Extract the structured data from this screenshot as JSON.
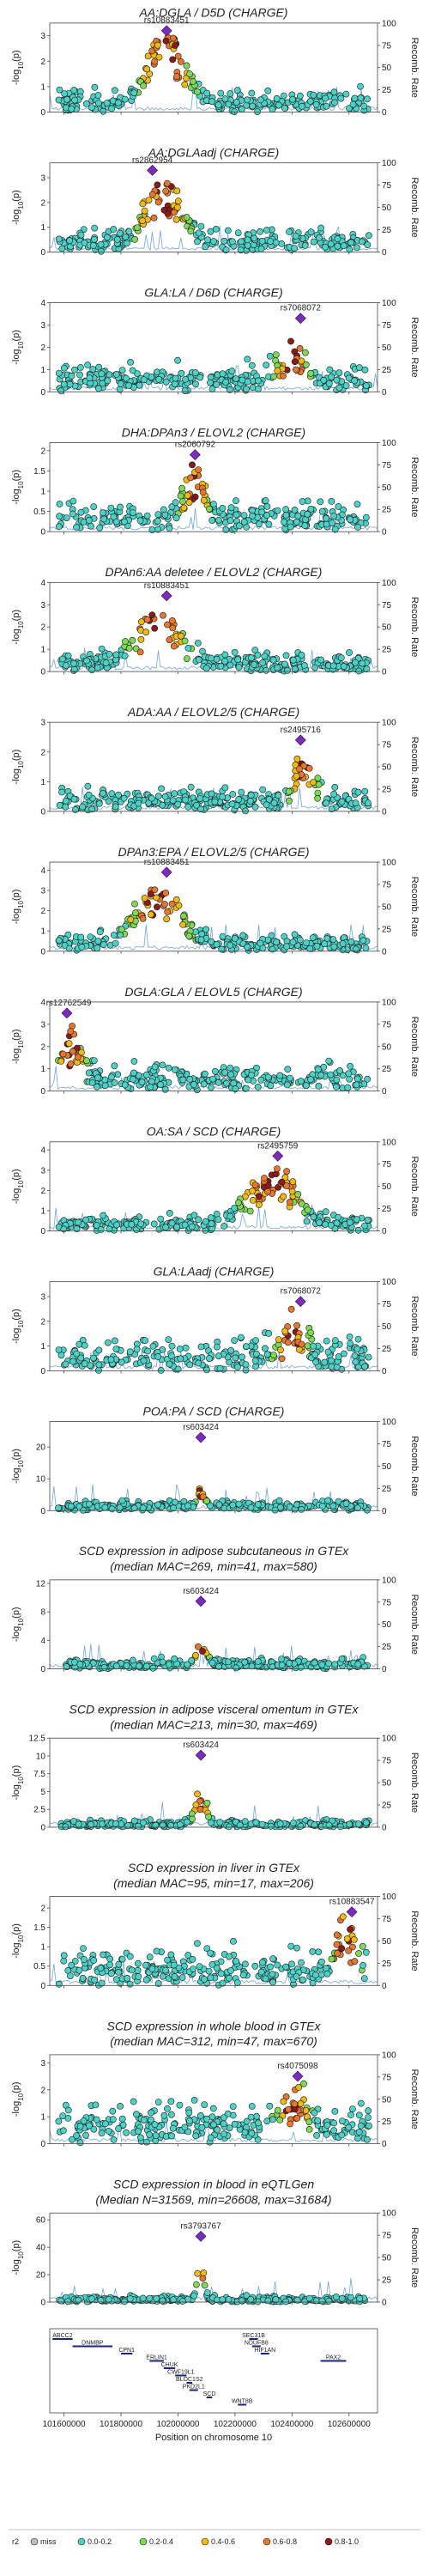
{
  "chart_data": {
    "type": "scatter",
    "chromosome_axis": {
      "xlabel": "Position on chromosome 10",
      "xlim": [
        101550000,
        102700000
      ],
      "x_ticks": [
        101600000,
        101800000,
        102000000,
        102200000,
        102400000,
        102600000
      ]
    },
    "y_axis_label": "-log10(p)",
    "y_axis_label_parts": [
      "-log",
      "10",
      "(p)"
    ],
    "right_axis_label": "Recomb. Rate",
    "right_axis_range": [
      0,
      100
    ],
    "right_axis_ticks": [
      0,
      25,
      50,
      75,
      100
    ],
    "legend": {
      "title": "r2",
      "entries": [
        {
          "label": "miss",
          "color": "#bdbdbd"
        },
        {
          "label": "0.0-0.2",
          "color": "#4dd0c6"
        },
        {
          "label": "0.2-0.4",
          "color": "#7ed957"
        },
        {
          "label": "0.4-0.6",
          "color": "#f2b90f"
        },
        {
          "label": "0.6-0.8",
          "color": "#e8772e"
        },
        {
          "label": "0.8-1.0",
          "color": "#8b1a1a"
        }
      ],
      "lead_color": "#7b2cbf"
    },
    "panels": [
      {
        "title": "AA:DGLA / D5D (CHARGE)",
        "subtitle": "",
        "lead_snp": "rs10883451",
        "lead_pos": 101960000,
        "lead_value": 3.2,
        "ylim": [
          0,
          3.5
        ],
        "y_ticks": [
          0,
          1,
          2,
          3
        ],
        "peak_pos": 101960000,
        "peak_width": 90000,
        "peak_height": 2.9,
        "baseline": 0.45,
        "baseline_spread": 0.65
      },
      {
        "title": "AA:DGLAadj (CHARGE)",
        "subtitle": "",
        "lead_snp": "rs2862954",
        "lead_pos": 101910000,
        "lead_value": 3.3,
        "ylim": [
          0,
          3.6
        ],
        "y_ticks": [
          0,
          1,
          2,
          3
        ],
        "peak_pos": 101950000,
        "peak_width": 90000,
        "peak_height": 2.6,
        "baseline": 0.45,
        "baseline_spread": 0.65
      },
      {
        "title": "GLA:LA / D6D (CHARGE)",
        "subtitle": "",
        "lead_snp": "rs7068072",
        "lead_pos": 102430000,
        "lead_value": 3.3,
        "ylim": [
          0,
          4
        ],
        "y_ticks": [
          0,
          1,
          2,
          3,
          4
        ],
        "peak_pos": 102400000,
        "peak_width": 60000,
        "peak_height": 1.4,
        "baseline": 0.5,
        "baseline_spread": 1.1
      },
      {
        "title": "DHA:DPAn3 / ELOVL2 (CHARGE)",
        "subtitle": "",
        "lead_snp": "rs2060792",
        "lead_pos": 102060000,
        "lead_value": 1.9,
        "ylim": [
          0,
          2.2
        ],
        "y_ticks": [
          0,
          0.5,
          1.0,
          1.5,
          2.0
        ],
        "peak_pos": 102060000,
        "peak_width": 50000,
        "peak_height": 1.2,
        "baseline": 0.35,
        "baseline_spread": 0.6
      },
      {
        "title": "DPAn6:AA deletee / ELOVL2 (CHARGE)",
        "subtitle": "",
        "lead_snp": "rs10883451",
        "lead_pos": 101960000,
        "lead_value": 3.4,
        "ylim": [
          0,
          4
        ],
        "y_ticks": [
          0,
          1,
          2,
          3,
          4
        ],
        "peak_pos": 101930000,
        "peak_width": 100000,
        "peak_height": 2.6,
        "baseline": 0.45,
        "baseline_spread": 0.65
      },
      {
        "title": "ADA:AA / ELOVL2/5 (CHARGE)",
        "subtitle": "",
        "lead_snp": "rs2495716",
        "lead_pos": 102430000,
        "lead_value": 2.4,
        "ylim": [
          0,
          3
        ],
        "y_ticks": [
          0,
          1,
          2,
          3
        ],
        "peak_pos": 102440000,
        "peak_width": 50000,
        "peak_height": 1.4,
        "baseline": 0.35,
        "baseline_spread": 0.7
      },
      {
        "title": "DPAn3:EPA / ELOVL2/5 (CHARGE)",
        "subtitle": "",
        "lead_snp": "rs10883451",
        "lead_pos": 101960000,
        "lead_value": 3.9,
        "ylim": [
          0,
          4.4
        ],
        "y_ticks": [
          0,
          1,
          2,
          3,
          4
        ],
        "peak_pos": 101930000,
        "peak_width": 110000,
        "peak_height": 3.0,
        "baseline": 0.45,
        "baseline_spread": 0.7
      },
      {
        "title": "DGLA:GLA / ELOVL5 (CHARGE)",
        "subtitle": "",
        "lead_snp": "rs12762549",
        "lead_pos": 101610000,
        "lead_value": 3.5,
        "ylim": [
          0,
          4
        ],
        "y_ticks": [
          0,
          1,
          2,
          3,
          4
        ],
        "peak_pos": 101620000,
        "peak_width": 60000,
        "peak_height": 2.0,
        "baseline": 0.55,
        "baseline_spread": 1.0
      },
      {
        "title": "OA:SA / SCD (CHARGE)",
        "subtitle": "",
        "lead_snp": "rs2495759",
        "lead_pos": 102350000,
        "lead_value": 3.7,
        "ylim": [
          0,
          4.4
        ],
        "y_ticks": [
          0,
          1,
          2,
          3,
          4
        ],
        "peak_pos": 102330000,
        "peak_width": 110000,
        "peak_height": 2.8,
        "baseline": 0.35,
        "baseline_spread": 0.6
      },
      {
        "title": "GLA:LAadj (CHARGE)",
        "subtitle": "",
        "lead_snp": "rs7068072",
        "lead_pos": 102430000,
        "lead_value": 2.8,
        "ylim": [
          0,
          3.6
        ],
        "y_ticks": [
          0,
          1,
          2,
          3
        ],
        "peak_pos": 102400000,
        "peak_width": 60000,
        "peak_height": 1.3,
        "baseline": 0.5,
        "baseline_spread": 1.1
      },
      {
        "title": "POA:PA / SCD (CHARGE)",
        "subtitle": "",
        "lead_snp": "rs603424",
        "lead_pos": 102080000,
        "lead_value": 23,
        "ylim": [
          0,
          28
        ],
        "y_ticks": [
          0,
          10,
          20
        ],
        "peak_pos": 102080000,
        "peak_width": 20000,
        "peak_height": 5,
        "baseline": 1.5,
        "baseline_spread": 2.5
      },
      {
        "title": "SCD expression in adipose subcutaneous in GTEx",
        "subtitle": "(median MAC=269, min=41, max=580)",
        "lead_snp": "rs603424",
        "lead_pos": 102080000,
        "lead_value": 9.5,
        "ylim": [
          0,
          12.5
        ],
        "y_ticks": [
          0,
          4,
          8,
          12
        ],
        "peak_pos": 102080000,
        "peak_width": 25000,
        "peak_height": 4,
        "baseline": 0.6,
        "baseline_spread": 1.2
      },
      {
        "title": "SCD expression in adipose visceral omentum in GTEx",
        "subtitle": "(median MAC=213, min=30, max=469)",
        "lead_snp": "rs603424",
        "lead_pos": 102080000,
        "lead_value": 10.1,
        "ylim": [
          0,
          12.5
        ],
        "y_ticks": [
          0,
          2.5,
          5.0,
          7.5,
          10.0,
          12.5
        ],
        "peak_pos": 102080000,
        "peak_width": 30000,
        "peak_height": 4.5,
        "baseline": 0.4,
        "baseline_spread": 0.8
      },
      {
        "title": "SCD expression in liver in GTEx",
        "subtitle": "(median MAC=95, min=17, max=206)",
        "lead_snp": "rs10883547",
        "lead_pos": 102610000,
        "lead_value": 1.9,
        "ylim": [
          0,
          2.3
        ],
        "y_ticks": [
          0,
          0.5,
          1.0,
          1.5,
          2.0
        ],
        "peak_pos": 102590000,
        "peak_width": 50000,
        "peak_height": 1.0,
        "baseline": 0.4,
        "baseline_spread": 0.9
      },
      {
        "title": "SCD expression in whole blood in GTEx",
        "subtitle": "(median MAC=312, min=47, max=670)",
        "lead_snp": "rs4075098",
        "lead_pos": 102420000,
        "lead_value": 2.5,
        "ylim": [
          0,
          3.3
        ],
        "y_ticks": [
          0,
          1,
          2,
          3
        ],
        "peak_pos": 102400000,
        "peak_width": 60000,
        "peak_height": 1.2,
        "baseline": 0.7,
        "baseline_spread": 1.3
      },
      {
        "title": "SCD expression in blood in eQTLGen",
        "subtitle": "(Median N=31569, min=26608, max=31684)",
        "lead_snp": "rs3793767",
        "lead_pos": 102080000,
        "lead_value": 48,
        "ylim": [
          0,
          65
        ],
        "y_ticks": [
          0,
          20,
          40,
          60
        ],
        "peak_pos": 102080000,
        "peak_width": 15000,
        "peak_height": 35,
        "baseline": 1.5,
        "baseline_spread": 4
      }
    ],
    "genes": [
      {
        "name": "ABCC2",
        "start": 101560000,
        "end": 101630000,
        "row": 0
      },
      {
        "name": "DNMBP",
        "start": 101630000,
        "end": 101770000,
        "row": 1
      },
      {
        "name": "CPN1",
        "start": 101800000,
        "end": 101840000,
        "row": 2
      },
      {
        "name": "ERLIN1",
        "start": 101900000,
        "end": 101950000,
        "row": 3
      },
      {
        "name": "CHUK",
        "start": 101950000,
        "end": 101990000,
        "row": 4
      },
      {
        "name": "CWF19L1",
        "start": 101990000,
        "end": 102030000,
        "row": 5
      },
      {
        "name": "BLOC1S2",
        "start": 102030000,
        "end": 102050000,
        "row": 6
      },
      {
        "name": "PKD2L1",
        "start": 102040000,
        "end": 102070000,
        "row": 7
      },
      {
        "name": "SCD",
        "start": 102100000,
        "end": 102120000,
        "row": 8
      },
      {
        "name": "WNT8B",
        "start": 102210000,
        "end": 102240000,
        "row": 9
      },
      {
        "name": "SEC31B",
        "start": 102250000,
        "end": 102280000,
        "row": 0
      },
      {
        "name": "NDUFB8",
        "start": 102260000,
        "end": 102290000,
        "row": 1
      },
      {
        "name": "HIF1AN",
        "start": 102290000,
        "end": 102320000,
        "row": 2
      },
      {
        "name": "PAX2",
        "start": 102500000,
        "end": 102590000,
        "row": 3
      }
    ]
  }
}
